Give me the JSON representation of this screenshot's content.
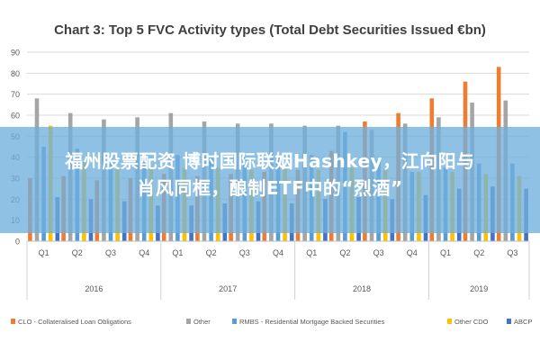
{
  "chart_data": {
    "type": "bar",
    "title": "Chart 3: Top 5 FVC Activity types (Total Debt Securities Issued €bn)",
    "ylim": [
      0,
      90
    ],
    "yticks": [
      0,
      10,
      20,
      30,
      40,
      50,
      60,
      70,
      80,
      90
    ],
    "grid": true,
    "legend_position": "bottom",
    "categories": [
      "Q1",
      "Q2",
      "Q3",
      "Q4",
      "Q1",
      "Q2",
      "Q3",
      "Q4",
      "Q1",
      "Q2",
      "Q3",
      "Q4",
      "Q1",
      "Q2",
      "Q3"
    ],
    "year_groups": [
      {
        "label": "2016",
        "count": 4
      },
      {
        "label": "2017",
        "count": 4
      },
      {
        "label": "2018",
        "count": 4
      },
      {
        "label": "2019",
        "count": 3
      }
    ],
    "series": [
      {
        "name": "CLO - Collateralised Loan Obligations",
        "color": "#ed7d31",
        "values": [
          30,
          31,
          29,
          30,
          32,
          31,
          32,
          33,
          34,
          43,
          57,
          61,
          68,
          76,
          83
        ]
      },
      {
        "name": "Other",
        "color": "#a5a5a5",
        "values": [
          68,
          61,
          58,
          59,
          61,
          57,
          56,
          56,
          55,
          55,
          53,
          56,
          59,
          66,
          67
        ]
      },
      {
        "name": "RMBS - Residential Mortgage Backed Securities",
        "color": "#5b9bd5",
        "values": [
          45,
          44,
          40,
          40,
          41,
          41,
          40,
          40,
          41,
          52,
          39,
          33,
          35,
          37,
          37
        ]
      },
      {
        "name": "Other CDO",
        "color": "#ffc000",
        "values": [
          55,
          38,
          35,
          36,
          35,
          35,
          34,
          35,
          34,
          35,
          34,
          33,
          33,
          32,
          31
        ]
      },
      {
        "name": "ABCP",
        "color": "#4472c4",
        "values": [
          21,
          20,
          19,
          17,
          17,
          18,
          19,
          18,
          20,
          21,
          20,
          22,
          25,
          26,
          25
        ]
      }
    ]
  },
  "overlay": {
    "line1": "福州股票配资 博时国际联姻Hashkey，江向阳与",
    "line2": "肖风同框，酿制ETF中的“烈酒”"
  }
}
